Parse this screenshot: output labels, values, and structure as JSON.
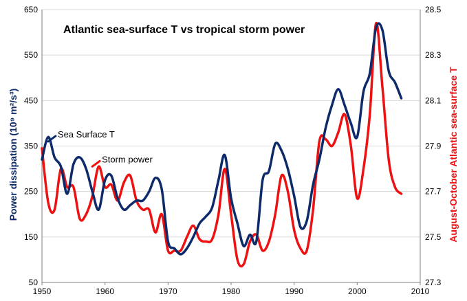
{
  "colors": {
    "sea_surface": "#0d2a6b",
    "storm_power": "#ee1111",
    "grid": "#d9d9d9",
    "axis": "#7f7f7f"
  },
  "chart_data": {
    "type": "line",
    "title": "Atlantic sea-surface T vs tropical storm power",
    "xlabel": "",
    "ylabel_left": "Power dissipation (10⁹ m²/s³)",
    "ylabel_right": "August-October Atlantic sea-surface T",
    "xlim": [
      1950,
      2010
    ],
    "ylim_left": [
      50,
      650
    ],
    "ylim_right": [
      27.3,
      28.5
    ],
    "x_ticks": [
      "1950",
      "1960",
      "1970",
      "1980",
      "1990",
      "2000",
      "2010"
    ],
    "y_ticks_left": [
      "50",
      "150",
      "250",
      "350",
      "450",
      "550",
      "650"
    ],
    "y_ticks_right": [
      "27.3",
      "27.5",
      "27.7",
      "27.9",
      "28.1",
      "28.3",
      "28.5"
    ],
    "grid": "horizontal",
    "annotations": [
      {
        "text": "Sea Surface T",
        "series": "Sea Surface T",
        "at": [
          1952.5,
          375
        ]
      },
      {
        "text": "Storm power",
        "series": "Storm power",
        "at": [
          1959.5,
          320
        ]
      }
    ],
    "series": [
      {
        "name": "Sea Surface T",
        "axis": "left",
        "x": [
          1950,
          1951,
          1952,
          1953,
          1954,
          1955,
          1956,
          1957,
          1958,
          1959,
          1960,
          1961,
          1962,
          1963,
          1964,
          1965,
          1966,
          1967,
          1968,
          1969,
          1970,
          1971,
          1972,
          1973,
          1974,
          1975,
          1976,
          1977,
          1978,
          1979,
          1980,
          1981,
          1982,
          1983,
          1984,
          1985,
          1986,
          1987,
          1988,
          1989,
          1990,
          1991,
          1992,
          1993,
          1994,
          1995,
          1996,
          1997,
          1998,
          1999,
          2000,
          2001,
          2002,
          2003,
          2004,
          2005,
          2006,
          2007
        ],
        "y": [
          320,
          370,
          325,
          305,
          245,
          310,
          325,
          300,
          250,
          210,
          275,
          285,
          235,
          210,
          220,
          230,
          230,
          250,
          280,
          255,
          140,
          125,
          112,
          125,
          150,
          180,
          195,
          215,
          275,
          330,
          235,
          180,
          130,
          155,
          140,
          275,
          295,
          355,
          340,
          300,
          240,
          172,
          185,
          265,
          320,
          390,
          440,
          475,
          440,
          400,
          370,
          470,
          510,
          610,
          605,
          515,
          490,
          455
        ]
      },
      {
        "name": "Storm power",
        "axis": "left",
        "x": [
          1950,
          1951,
          1952,
          1953,
          1954,
          1955,
          1956,
          1957,
          1958,
          1959,
          1960,
          1961,
          1962,
          1963,
          1964,
          1965,
          1966,
          1967,
          1968,
          1969,
          1970,
          1971,
          1972,
          1973,
          1974,
          1975,
          1976,
          1977,
          1978,
          1979,
          1980,
          1981,
          1982,
          1983,
          1984,
          1985,
          1986,
          1987,
          1988,
          1989,
          1990,
          1991,
          1992,
          1993,
          1994,
          1995,
          1996,
          1997,
          1998,
          1999,
          2000,
          2001,
          2002,
          2003,
          2004,
          2005,
          2006,
          2007
        ],
        "y": [
          345,
          225,
          210,
          300,
          260,
          260,
          190,
          200,
          240,
          305,
          260,
          265,
          230,
          270,
          285,
          230,
          210,
          210,
          160,
          200,
          120,
          120,
          120,
          150,
          175,
          145,
          140,
          145,
          200,
          300,
          200,
          100,
          90,
          140,
          155,
          120,
          140,
          200,
          285,
          250,
          165,
          125,
          120,
          210,
          360,
          365,
          350,
          380,
          420,
          350,
          235,
          300,
          420,
          620,
          480,
          320,
          260,
          245
        ]
      }
    ]
  }
}
